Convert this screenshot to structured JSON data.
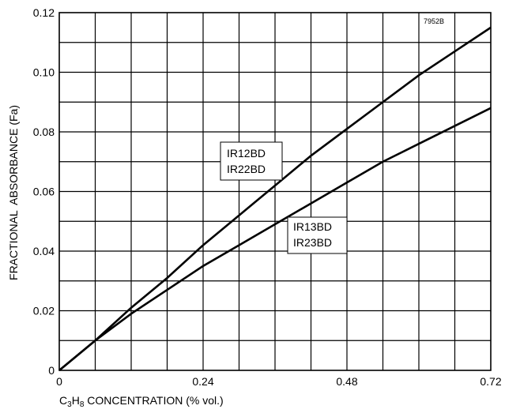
{
  "chart_data": {
    "type": "line",
    "title": "",
    "figure_code": "7952B",
    "xlabel": {
      "main_prefix": "C",
      "sub1": "3",
      "mid": "H",
      "sub2": "8",
      "suffix": " CONCENTRATION (% vol.)"
    },
    "ylabel": "FRACTIONAL  ABSORBANCE (Fa)",
    "xlim": [
      0,
      0.72
    ],
    "ylim": [
      0,
      0.12
    ],
    "x_ticks": [
      0,
      0.24,
      0.48,
      0.72
    ],
    "x_tick_labels": [
      "0",
      "0.24",
      "0.48",
      "0.72"
    ],
    "y_ticks": [
      0,
      0.02,
      0.04,
      0.06,
      0.08,
      0.1,
      0.12
    ],
    "y_tick_labels": [
      "0",
      "0.02",
      "0.04",
      "0.06",
      "0.08",
      "0.10",
      "0.12"
    ],
    "x_grid_step": 0.06,
    "y_grid_step": 0.01,
    "grid": true,
    "series": [
      {
        "label_lines": [
          "IR12BD",
          "IR22BD"
        ],
        "x": [
          0,
          0.06,
          0.12,
          0.18,
          0.24,
          0.3,
          0.36,
          0.42,
          0.48,
          0.54,
          0.6,
          0.66,
          0.72
        ],
        "y": [
          0,
          0.01,
          0.021,
          0.031,
          0.042,
          0.052,
          0.062,
          0.072,
          0.081,
          0.09,
          0.099,
          0.107,
          0.115
        ]
      },
      {
        "label_lines": [
          "IR13BD",
          "IR23BD"
        ],
        "x": [
          0,
          0.06,
          0.12,
          0.18,
          0.24,
          0.3,
          0.36,
          0.42,
          0.48,
          0.54,
          0.6,
          0.66,
          0.72
        ],
        "y": [
          0,
          0.01,
          0.019,
          0.027,
          0.035,
          0.042,
          0.049,
          0.056,
          0.063,
          0.07,
          0.076,
          0.082,
          0.088
        ]
      }
    ]
  }
}
